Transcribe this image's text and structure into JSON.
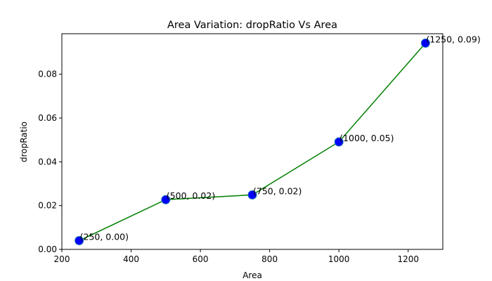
{
  "chart_data": {
    "type": "line",
    "title": "Area Variation: dropRatio Vs Area",
    "xlabel": "Area",
    "ylabel": "dropRatio",
    "xlim": [
      200,
      1300
    ],
    "ylim": [
      0,
      0.0985
    ],
    "xticks": [
      200,
      400,
      600,
      800,
      1000,
      1200
    ],
    "xtick_labels": [
      "200",
      "400",
      "600",
      "800",
      "1000",
      "1200"
    ],
    "yticks": [
      0,
      0.02,
      0.04,
      0.06,
      0.08
    ],
    "ytick_labels": [
      "0.00",
      "0.02",
      "0.04",
      "0.06",
      "0.08"
    ],
    "grid": false,
    "series": [
      {
        "x": [
          250,
          500,
          750,
          1000,
          1250
        ],
        "y": [
          0.004,
          0.0227,
          0.0249,
          0.0491,
          0.0942
        ],
        "line_color": "#008000",
        "marker_color": "#0000ff",
        "marker_edge_color": "#1f77b4",
        "labels": [
          "(250, 0.00)",
          "(500, 0.02)",
          "(750, 0.02)",
          "(1000, 0.05)",
          "(1250, 0.09)"
        ]
      }
    ]
  }
}
